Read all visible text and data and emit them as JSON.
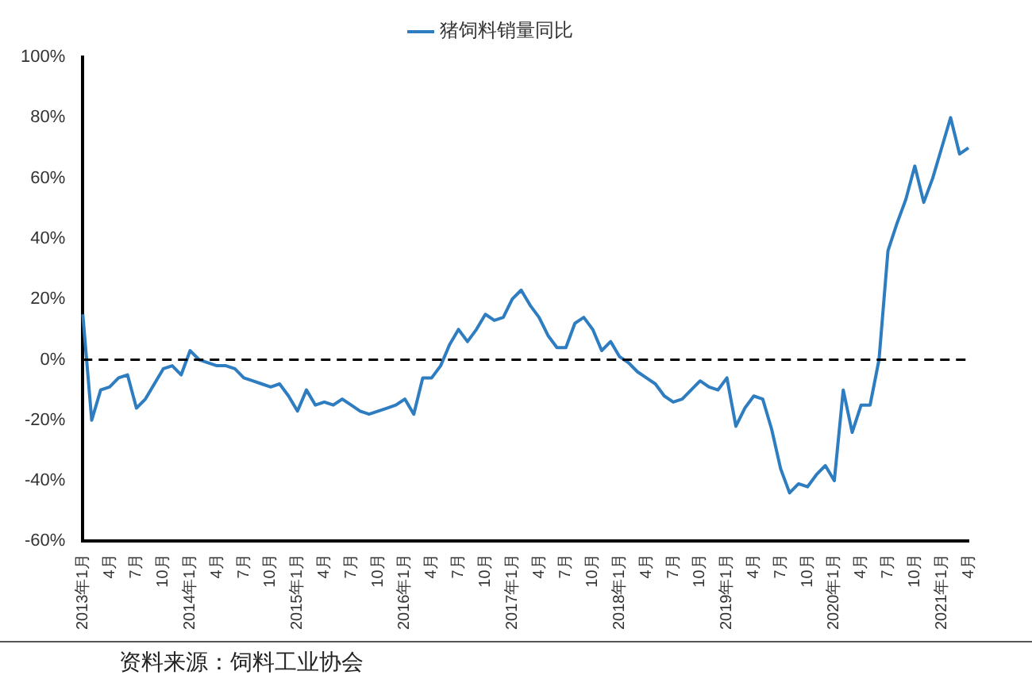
{
  "chart_data": {
    "type": "line",
    "categories": [
      "2013年1月",
      null,
      null,
      "4月",
      null,
      null,
      "7月",
      null,
      null,
      "10月",
      null,
      null,
      "2014年1月",
      null,
      null,
      "4月",
      null,
      null,
      "7月",
      null,
      null,
      "10月",
      null,
      null,
      "2015年1月",
      null,
      null,
      "4月",
      null,
      null,
      "7月",
      null,
      null,
      "10月",
      null,
      null,
      "2016年1月",
      null,
      null,
      "4月",
      null,
      null,
      "7月",
      null,
      null,
      "10月",
      null,
      null,
      "2017年1月",
      null,
      null,
      "4月",
      null,
      null,
      "7月",
      null,
      null,
      "10月",
      null,
      null,
      "2018年1月",
      null,
      null,
      "4月",
      null,
      null,
      "7月",
      null,
      null,
      "10月",
      null,
      null,
      "2019年1月",
      null,
      null,
      "4月",
      null,
      null,
      "7月",
      null,
      null,
      "10月",
      null,
      null,
      "2020年1月",
      null,
      null,
      "4月",
      null,
      null,
      "7月",
      null,
      null,
      "10月",
      null,
      null,
      "2021年1月",
      null,
      null,
      "4月"
    ],
    "series": [
      {
        "name": "猪饲料销量同比",
        "color": "#2e7dc0",
        "values": [
          15,
          -20,
          -10,
          -9,
          -6,
          -5,
          -16,
          -13,
          -8,
          -3,
          -2,
          -5,
          3,
          0,
          -1,
          -2,
          -2,
          -3,
          -6,
          -7,
          -8,
          -9,
          -8,
          -12,
          -17,
          -10,
          -15,
          -14,
          -15,
          -13,
          -15,
          -17,
          -18,
          -17,
          -16,
          -15,
          -13,
          -18,
          -6,
          -6,
          -2,
          5,
          10,
          6,
          10,
          15,
          13,
          14,
          20,
          23,
          18,
          14,
          8,
          4,
          4,
          12,
          14,
          10,
          3,
          6,
          1,
          -1,
          -4,
          -6,
          -8,
          -12,
          -14,
          -13,
          -10,
          -7,
          -9,
          -10,
          -6,
          -22,
          -16,
          -12,
          -13,
          -23,
          -36,
          -44,
          -41,
          -42,
          -38,
          -35,
          -40,
          -10,
          -24,
          -15,
          -15,
          0,
          36,
          45,
          53,
          64,
          52,
          60,
          70,
          80,
          68,
          70
        ]
      }
    ],
    "ylim": [
      -60,
      100
    ],
    "yticks": [
      {
        "value": -60,
        "label": "-60%"
      },
      {
        "value": -40,
        "label": "-40%"
      },
      {
        "value": -20,
        "label": "-20%"
      },
      {
        "value": 0,
        "label": "0%"
      },
      {
        "value": 20,
        "label": "20%"
      },
      {
        "value": 40,
        "label": "40%"
      },
      {
        "value": 60,
        "label": "60%"
      },
      {
        "value": 80,
        "label": "80%"
      },
      {
        "value": 100,
        "label": "100%"
      }
    ],
    "ref_lines": [
      {
        "axis": "y",
        "value": 0,
        "color": "#000000",
        "line_style": "dashed"
      }
    ],
    "legend": "top",
    "grid": false,
    "marker": "none",
    "line_style": "solid",
    "annotations": [
      "资料来源：饲料工业协会"
    ]
  }
}
